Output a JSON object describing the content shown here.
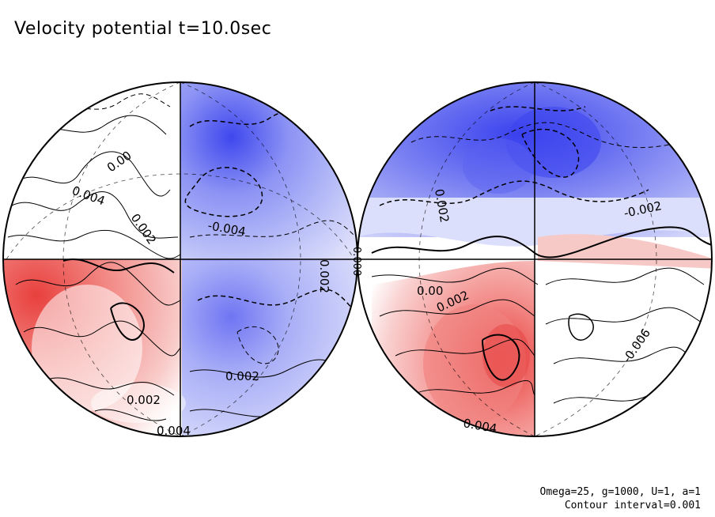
{
  "title": "Velocity potential t=10.0sec",
  "footer": {
    "line1": "Omega=25, g=1000, U=1, a=1",
    "line2": "Contour interval=0.001"
  },
  "colors": {
    "negative": "#4a52f0",
    "negative_light": "#c8cdfb",
    "positive": "#ee4a45",
    "positive_light": "#f8c8c6",
    "line": "#000000"
  },
  "hemispheres": [
    {
      "name": "left",
      "contour_labels": [
        "0.00",
        "0.004",
        "0.002",
        "-0.004",
        "0.002",
        "0.000",
        "0.002",
        "0.002",
        "0.004"
      ]
    },
    {
      "name": "right",
      "contour_labels": [
        "0.002",
        "-0.002",
        "0.00",
        "0.002",
        "-0.006",
        "0.004"
      ]
    }
  ]
}
